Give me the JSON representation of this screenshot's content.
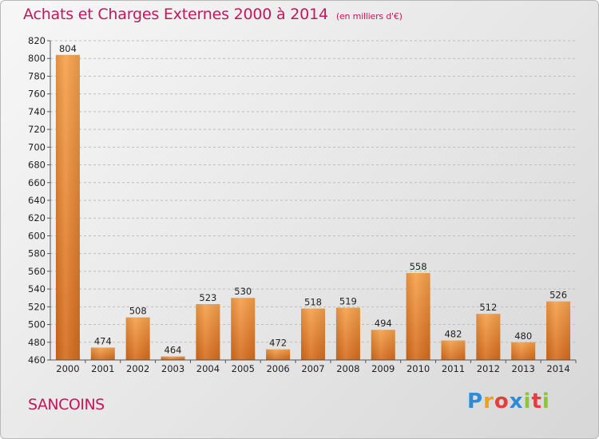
{
  "title": "Achats et Charges Externes 2000 à 2014",
  "unit": "(en milliers d'€)",
  "commune": "SANCOINS",
  "logo": {
    "letters": [
      {
        "ch": "P",
        "color": "#2e8bd8"
      },
      {
        "ch": "r",
        "color": "#f0a020"
      },
      {
        "ch": "o",
        "color": "#e43d3d"
      },
      {
        "ch": "x",
        "color": "#2e8bd8"
      },
      {
        "ch": "i",
        "color": "#8cc43c"
      },
      {
        "ch": "t",
        "color": "#e43d3d"
      },
      {
        "ch": "i",
        "color": "#8cc43c"
      }
    ]
  },
  "colors": {
    "title": "#c2185b",
    "bar_light": "#f6a04a",
    "bar_dark": "#d56b1c",
    "grid": "#bdbdbd"
  },
  "chart_data": {
    "type": "bar",
    "title": "Achats et Charges Externes 2000 à 2014",
    "categories": [
      "2000",
      "2001",
      "2002",
      "2003",
      "2004",
      "2005",
      "2006",
      "2007",
      "2008",
      "2009",
      "2010",
      "2011",
      "2012",
      "2013",
      "2014"
    ],
    "values": [
      804,
      474,
      508,
      464,
      523,
      530,
      472,
      518,
      519,
      494,
      558,
      482,
      512,
      480,
      526
    ],
    "ylim": [
      460,
      820
    ],
    "yticks": [
      460,
      480,
      500,
      520,
      540,
      560,
      580,
      600,
      620,
      640,
      660,
      680,
      700,
      720,
      740,
      760,
      780,
      800,
      820
    ],
    "grid": true,
    "data_labels": true
  }
}
